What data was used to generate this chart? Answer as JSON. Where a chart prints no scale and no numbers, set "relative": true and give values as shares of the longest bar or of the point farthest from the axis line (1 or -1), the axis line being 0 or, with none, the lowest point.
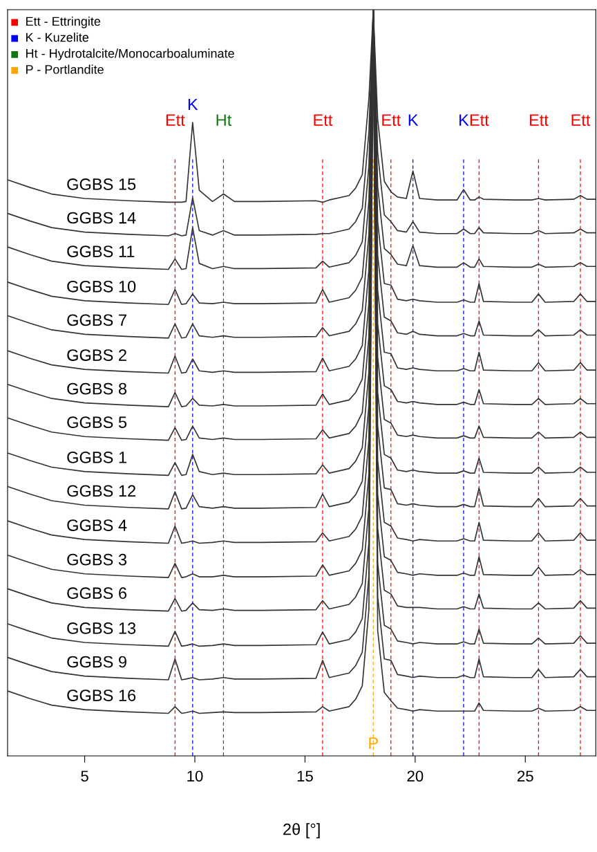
{
  "chart_data": {
    "type": "line",
    "relative": true,
    "xlabel": "2θ [°]",
    "xlim": [
      1.5,
      28.2
    ],
    "xticks": [
      5,
      10,
      15,
      20,
      25
    ],
    "tick_labels": "x",
    "x": [
      1.5,
      2.5,
      3.5,
      5,
      7,
      8.8,
      9.1,
      9.4,
      9.6,
      9.9,
      10.2,
      10.8,
      11.3,
      11.8,
      13,
      15.5,
      15.8,
      16.1,
      17.0,
      17.3,
      17.6,
      17.9,
      18.1,
      18.3,
      18.6,
      18.9,
      19.2,
      19.6,
      19.9,
      20.2,
      21,
      21.9,
      22.2,
      22.5,
      22.7,
      22.9,
      23.1,
      24.5,
      25.3,
      25.6,
      25.9,
      27.2,
      27.5,
      27.8,
      28.2
    ],
    "series": [
      {
        "name": "GGBS 15",
        "color": "#333333",
        "values": [
          0.772,
          0.762,
          0.753,
          0.747,
          0.744,
          0.742,
          0.742,
          0.742,
          0.743,
          0.849,
          0.758,
          0.743,
          0.753,
          0.743,
          0.743,
          0.744,
          0.742,
          0.745,
          0.751,
          0.761,
          0.779,
          0.881,
          1,
          0.853,
          0.77,
          0.756,
          0.749,
          0.747,
          0.784,
          0.747,
          0.745,
          0.745,
          0.759,
          0.745,
          0.745,
          0.749,
          0.746,
          0.745,
          0.745,
          0.747,
          0.745,
          0.746,
          0.751,
          0.746,
          0.746
        ]
      },
      {
        "name": "GGBS 14",
        "color": "#333333",
        "values": [
          0.727,
          0.717,
          0.708,
          0.702,
          0.699,
          0.697,
          0.7,
          0.697,
          0.698,
          0.748,
          0.704,
          0.698,
          0.704,
          0.698,
          0.698,
          0.699,
          0.7,
          0.7,
          0.706,
          0.716,
          0.734,
          0.836,
          1,
          0.808,
          0.725,
          0.716,
          0.704,
          0.702,
          0.716,
          0.702,
          0.7,
          0.7,
          0.706,
          0.7,
          0.7,
          0.708,
          0.701,
          0.7,
          0.7,
          0.704,
          0.7,
          0.701,
          0.706,
          0.701,
          0.701
        ]
      },
      {
        "name": "GGBS 11",
        "color": "#333333",
        "values": [
          0.682,
          0.672,
          0.663,
          0.657,
          0.654,
          0.652,
          0.666,
          0.652,
          0.653,
          0.708,
          0.66,
          0.653,
          0.656,
          0.653,
          0.653,
          0.654,
          0.663,
          0.655,
          0.661,
          0.671,
          0.689,
          0.791,
          1,
          0.763,
          0.68,
          0.672,
          0.659,
          0.657,
          0.684,
          0.657,
          0.655,
          0.655,
          0.661,
          0.655,
          0.655,
          0.666,
          0.656,
          0.655,
          0.655,
          0.659,
          0.655,
          0.656,
          0.661,
          0.656,
          0.656
        ]
      },
      {
        "name": "GGBS 10",
        "color": "#333333",
        "values": [
          0.635,
          0.625,
          0.616,
          0.61,
          0.607,
          0.605,
          0.625,
          0.605,
          0.606,
          0.619,
          0.607,
          0.606,
          0.608,
          0.606,
          0.606,
          0.607,
          0.625,
          0.608,
          0.614,
          0.624,
          0.642,
          0.744,
          1,
          0.716,
          0.633,
          0.631,
          0.612,
          0.61,
          0.612,
          0.61,
          0.608,
          0.608,
          0.611,
          0.608,
          0.608,
          0.633,
          0.609,
          0.608,
          0.608,
          0.619,
          0.608,
          0.609,
          0.619,
          0.609,
          0.609
        ]
      },
      {
        "name": "GGBS 7",
        "color": "#333333",
        "values": [
          0.59,
          0.58,
          0.571,
          0.565,
          0.562,
          0.56,
          0.579,
          0.56,
          0.561,
          0.579,
          0.563,
          0.561,
          0.563,
          0.561,
          0.561,
          0.562,
          0.574,
          0.563,
          0.569,
          0.579,
          0.597,
          0.699,
          1,
          0.671,
          0.588,
          0.583,
          0.567,
          0.565,
          0.569,
          0.565,
          0.563,
          0.563,
          0.566,
          0.563,
          0.563,
          0.583,
          0.564,
          0.563,
          0.563,
          0.571,
          0.563,
          0.564,
          0.571,
          0.564,
          0.564
        ]
      },
      {
        "name": "GGBS 2",
        "color": "#333333",
        "values": [
          0.543,
          0.533,
          0.524,
          0.518,
          0.515,
          0.513,
          0.536,
          0.513,
          0.514,
          0.532,
          0.516,
          0.514,
          0.516,
          0.514,
          0.514,
          0.515,
          0.533,
          0.516,
          0.522,
          0.532,
          0.55,
          0.652,
          1,
          0.624,
          0.541,
          0.539,
          0.52,
          0.518,
          0.52,
          0.518,
          0.516,
          0.516,
          0.519,
          0.516,
          0.516,
          0.541,
          0.517,
          0.516,
          0.516,
          0.527,
          0.516,
          0.517,
          0.527,
          0.517,
          0.517
        ]
      },
      {
        "name": "GGBS 8",
        "color": "#333333",
        "values": [
          0.498,
          0.488,
          0.479,
          0.473,
          0.47,
          0.468,
          0.487,
          0.468,
          0.469,
          0.479,
          0.47,
          0.469,
          0.471,
          0.469,
          0.469,
          0.47,
          0.485,
          0.471,
          0.477,
          0.487,
          0.505,
          0.607,
          1,
          0.579,
          0.496,
          0.491,
          0.475,
          0.473,
          0.475,
          0.473,
          0.471,
          0.471,
          0.474,
          0.471,
          0.471,
          0.491,
          0.472,
          0.471,
          0.471,
          0.479,
          0.471,
          0.472,
          0.479,
          0.472,
          0.472
        ]
      },
      {
        "name": "GGBS 5",
        "color": "#333333",
        "values": [
          0.453,
          0.443,
          0.434,
          0.428,
          0.425,
          0.423,
          0.44,
          0.423,
          0.424,
          0.442,
          0.426,
          0.424,
          0.426,
          0.424,
          0.424,
          0.425,
          0.437,
          0.426,
          0.432,
          0.442,
          0.46,
          0.562,
          1,
          0.534,
          0.451,
          0.446,
          0.43,
          0.428,
          0.43,
          0.428,
          0.426,
          0.426,
          0.429,
          0.426,
          0.426,
          0.442,
          0.427,
          0.426,
          0.426,
          0.434,
          0.426,
          0.427,
          0.434,
          0.427,
          0.427
        ]
      },
      {
        "name": "GGBS 1",
        "color": "#333333",
        "values": [
          0.406,
          0.396,
          0.387,
          0.381,
          0.378,
          0.376,
          0.393,
          0.376,
          0.377,
          0.404,
          0.381,
          0.377,
          0.379,
          0.377,
          0.377,
          0.378,
          0.39,
          0.379,
          0.385,
          0.395,
          0.413,
          0.515,
          1,
          0.487,
          0.404,
          0.399,
          0.383,
          0.381,
          0.383,
          0.381,
          0.379,
          0.379,
          0.382,
          0.379,
          0.379,
          0.399,
          0.38,
          0.379,
          0.379,
          0.387,
          0.379,
          0.38,
          0.387,
          0.38,
          0.38
        ]
      },
      {
        "name": "GGBS 12",
        "color": "#333333",
        "values": [
          0.361,
          0.351,
          0.342,
          0.336,
          0.333,
          0.331,
          0.354,
          0.331,
          0.332,
          0.35,
          0.334,
          0.332,
          0.334,
          0.332,
          0.332,
          0.333,
          0.351,
          0.334,
          0.34,
          0.35,
          0.368,
          0.47,
          1,
          0.442,
          0.359,
          0.357,
          0.338,
          0.336,
          0.338,
          0.336,
          0.334,
          0.334,
          0.337,
          0.334,
          0.334,
          0.359,
          0.335,
          0.334,
          0.334,
          0.345,
          0.334,
          0.335,
          0.345,
          0.335,
          0.335
        ]
      },
      {
        "name": "GGBS 4",
        "color": "#333333",
        "values": [
          0.315,
          0.305,
          0.296,
          0.29,
          0.287,
          0.285,
          0.308,
          0.285,
          0.286,
          0.288,
          0.285,
          0.286,
          0.288,
          0.286,
          0.286,
          0.287,
          0.299,
          0.288,
          0.294,
          0.304,
          0.322,
          0.424,
          1,
          0.396,
          0.313,
          0.308,
          0.292,
          0.29,
          0.288,
          0.29,
          0.288,
          0.288,
          0.291,
          0.288,
          0.288,
          0.313,
          0.289,
          0.288,
          0.288,
          0.299,
          0.288,
          0.289,
          0.299,
          0.289,
          0.289
        ]
      },
      {
        "name": "GGBS 3",
        "color": "#333333",
        "values": [
          0.269,
          0.259,
          0.25,
          0.244,
          0.241,
          0.239,
          0.258,
          0.239,
          0.24,
          0.244,
          0.24,
          0.24,
          0.242,
          0.24,
          0.24,
          0.241,
          0.256,
          0.242,
          0.248,
          0.258,
          0.276,
          0.378,
          1,
          0.35,
          0.267,
          0.262,
          0.246,
          0.244,
          0.242,
          0.244,
          0.242,
          0.242,
          0.245,
          0.242,
          0.242,
          0.267,
          0.243,
          0.242,
          0.242,
          0.253,
          0.242,
          0.243,
          0.25,
          0.243,
          0.243
        ]
      },
      {
        "name": "GGBS 6",
        "color": "#333333",
        "values": [
          0.224,
          0.214,
          0.205,
          0.199,
          0.196,
          0.194,
          0.211,
          0.194,
          0.195,
          0.205,
          0.196,
          0.195,
          0.197,
          0.195,
          0.195,
          0.196,
          0.208,
          0.197,
          0.203,
          0.213,
          0.231,
          0.333,
          1,
          0.305,
          0.222,
          0.217,
          0.201,
          0.199,
          0.199,
          0.199,
          0.197,
          0.197,
          0.2,
          0.197,
          0.197,
          0.217,
          0.198,
          0.197,
          0.197,
          0.205,
          0.197,
          0.198,
          0.208,
          0.198,
          0.198
        ]
      },
      {
        "name": "GGBS 13",
        "color": "#333333",
        "values": [
          0.177,
          0.167,
          0.158,
          0.152,
          0.149,
          0.147,
          0.167,
          0.147,
          0.148,
          0.15,
          0.147,
          0.148,
          0.15,
          0.148,
          0.148,
          0.149,
          0.166,
          0.15,
          0.156,
          0.166,
          0.184,
          0.286,
          1,
          0.258,
          0.175,
          0.17,
          0.154,
          0.152,
          0.15,
          0.152,
          0.15,
          0.15,
          0.153,
          0.15,
          0.15,
          0.17,
          0.151,
          0.15,
          0.15,
          0.158,
          0.15,
          0.151,
          0.161,
          0.151,
          0.151
        ]
      },
      {
        "name": "GGBS 9",
        "color": "#333333",
        "values": [
          0.132,
          0.122,
          0.113,
          0.107,
          0.104,
          0.102,
          0.13,
          0.102,
          0.103,
          0.105,
          0.102,
          0.103,
          0.105,
          0.103,
          0.103,
          0.104,
          0.128,
          0.105,
          0.111,
          0.121,
          0.139,
          0.241,
          1,
          0.213,
          0.13,
          0.128,
          0.109,
          0.107,
          0.105,
          0.107,
          0.105,
          0.105,
          0.108,
          0.105,
          0.105,
          0.13,
          0.106,
          0.105,
          0.105,
          0.116,
          0.105,
          0.106,
          0.116,
          0.106,
          0.106
        ]
      },
      {
        "name": "GGBS 16",
        "color": "#333333",
        "values": [
          0.087,
          0.077,
          0.068,
          0.062,
          0.059,
          0.057,
          0.066,
          0.057,
          0.058,
          0.06,
          0.057,
          0.058,
          0.059,
          0.058,
          0.058,
          0.059,
          0.066,
          0.06,
          0.066,
          0.076,
          0.094,
          0.196,
          1,
          0.168,
          0.085,
          0.074,
          0.064,
          0.062,
          0.06,
          0.062,
          0.06,
          0.06,
          0.06,
          0.06,
          0.06,
          0.071,
          0.061,
          0.06,
          0.06,
          0.064,
          0.06,
          0.061,
          0.066,
          0.061,
          0.061
        ]
      }
    ],
    "ref_lines": [
      {
        "axis": "x",
        "value": 9.1,
        "label": "Ett",
        "color": "#ff0000",
        "line_style": "dashed"
      },
      {
        "axis": "x",
        "value": 9.9,
        "label": "K",
        "color": "#0000ff",
        "line_style": "dashed"
      },
      {
        "axis": "x",
        "value": 11.3,
        "label": "Ht",
        "color": "#117711",
        "line_style": "dashed"
      },
      {
        "axis": "x",
        "value": 15.8,
        "label": "Ett",
        "color": "#ff0000",
        "line_style": "dashed"
      },
      {
        "axis": "x",
        "value": 18.1,
        "label": "P",
        "color": "#ffa500",
        "line_style": "dashed"
      },
      {
        "axis": "x",
        "value": 18.9,
        "label": "Ett",
        "color": "#ff0000",
        "line_style": "dashed"
      },
      {
        "axis": "x",
        "value": 19.9,
        "label": "K",
        "color": "#0000ff",
        "line_style": "dashed"
      },
      {
        "axis": "x",
        "value": 22.2,
        "label": "K",
        "color": "#0000ff",
        "line_style": "dashed"
      },
      {
        "axis": "x",
        "value": 22.9,
        "label": "Ett",
        "color": "#ff0000",
        "line_style": "dashed"
      },
      {
        "axis": "x",
        "value": 25.6,
        "label": "Ett",
        "color": "#ff0000",
        "line_style": "dashed"
      },
      {
        "axis": "x",
        "value": 27.5,
        "label": "Ett",
        "color": "#ff0000",
        "line_style": "dashed"
      }
    ],
    "annotations": [
      "Ett - Ettringite",
      "K - Kuzelite",
      "Ht - Hydrotalcite/Monocarboaluminate",
      "P - Portlandite"
    ]
  }
}
